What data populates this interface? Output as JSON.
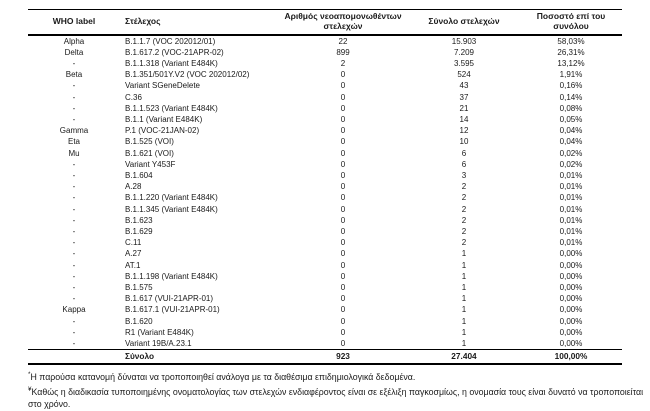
{
  "table": {
    "columns": [
      {
        "label": "WHO label"
      },
      {
        "label": "Στέλεχος"
      },
      {
        "label": "Αριθμός νεοαπομονωθέντων στελεχών"
      },
      {
        "label": "Σύνολο στελεχών"
      },
      {
        "label": "Ποσοστό επί του συνόλου"
      }
    ],
    "rows": [
      {
        "who": "Alpha",
        "strain": "B.1.1.7 (VOC 202012/01)",
        "new_isolates": "22",
        "total": "15.903",
        "pct": "58,03%"
      },
      {
        "who": "Delta",
        "strain": "B.1.617.2 (VOC-21APR-02)",
        "new_isolates": "899",
        "total": "7.209",
        "pct": "26,31%"
      },
      {
        "who": "-",
        "strain": "B.1.1.318 (Variant E484K)",
        "new_isolates": "2",
        "total": "3.595",
        "pct": "13,12%"
      },
      {
        "who": "Beta",
        "strain": "B.1.351/501Y.V2 (VOC 202012/02)",
        "new_isolates": "0",
        "total": "524",
        "pct": "1,91%"
      },
      {
        "who": "-",
        "strain": "Variant SGeneDelete",
        "new_isolates": "0",
        "total": "43",
        "pct": "0,16%"
      },
      {
        "who": "-",
        "strain": "C.36",
        "new_isolates": "0",
        "total": "37",
        "pct": "0,14%"
      },
      {
        "who": "-",
        "strain": "B.1.1.523 (Variant E484K)",
        "new_isolates": "0",
        "total": "21",
        "pct": "0,08%"
      },
      {
        "who": "-",
        "strain": "B.1.1 (Variant E484K)",
        "new_isolates": "0",
        "total": "14",
        "pct": "0,05%"
      },
      {
        "who": "Gamma",
        "strain": "P.1 (VOC-21JAN-02)",
        "new_isolates": "0",
        "total": "12",
        "pct": "0,04%"
      },
      {
        "who": "Eta",
        "strain": "B.1.525 (VOI)",
        "new_isolates": "0",
        "total": "10",
        "pct": "0,04%"
      },
      {
        "who": "Mu",
        "strain": "B.1.621 (VOI)",
        "new_isolates": "0",
        "total": "6",
        "pct": "0,02%"
      },
      {
        "who": "-",
        "strain": "Variant Y453F",
        "new_isolates": "0",
        "total": "6",
        "pct": "0,02%"
      },
      {
        "who": "-",
        "strain": "B.1.604",
        "new_isolates": "0",
        "total": "3",
        "pct": "0,01%"
      },
      {
        "who": "-",
        "strain": "A.28",
        "new_isolates": "0",
        "total": "2",
        "pct": "0,01%"
      },
      {
        "who": "-",
        "strain": "B.1.1.220 (Variant E484K)",
        "new_isolates": "0",
        "total": "2",
        "pct": "0,01%"
      },
      {
        "who": "-",
        "strain": "B.1.1.345 (Variant E484K)",
        "new_isolates": "0",
        "total": "2",
        "pct": "0,01%"
      },
      {
        "who": "-",
        "strain": "B.1.623",
        "new_isolates": "0",
        "total": "2",
        "pct": "0,01%"
      },
      {
        "who": "-",
        "strain": "B.1.629",
        "new_isolates": "0",
        "total": "2",
        "pct": "0,01%"
      },
      {
        "who": "-",
        "strain": "C.11",
        "new_isolates": "0",
        "total": "2",
        "pct": "0,01%"
      },
      {
        "who": "-",
        "strain": "A.27",
        "new_isolates": "0",
        "total": "1",
        "pct": "0,00%"
      },
      {
        "who": "-",
        "strain": "AT.1",
        "new_isolates": "0",
        "total": "1",
        "pct": "0,00%"
      },
      {
        "who": "-",
        "strain": "B.1.1.198 (Variant E484K)",
        "new_isolates": "0",
        "total": "1",
        "pct": "0,00%"
      },
      {
        "who": "-",
        "strain": "B.1.575",
        "new_isolates": "0",
        "total": "1",
        "pct": "0,00%"
      },
      {
        "who": "-",
        "strain": "B.1.617 (VUI-21APR-01)",
        "new_isolates": "0",
        "total": "1",
        "pct": "0,00%"
      },
      {
        "who": "Kappa",
        "strain": "B.1.617.1 (VUI-21APR-01)",
        "new_isolates": "0",
        "total": "1",
        "pct": "0,00%"
      },
      {
        "who": "-",
        "strain": "B.1.620",
        "new_isolates": "0",
        "total": "1",
        "pct": "0,00%"
      },
      {
        "who": "-",
        "strain": "R1 (Variant E484K)",
        "new_isolates": "0",
        "total": "1",
        "pct": "0,00%"
      },
      {
        "who": "-",
        "strain": "Variant 19B/A.23.1",
        "new_isolates": "0",
        "total": "1",
        "pct": "0,00%"
      }
    ],
    "total_row": {
      "label": "Σύνολο",
      "new_isolates": "923",
      "total": "27.404",
      "pct": "100,00%"
    }
  },
  "footnotes": [
    {
      "marker": "*",
      "text": "Η παρούσα κατανομή δύναται να τροποποιηθεί ανάλογα με τα διαθέσιμα επιδημιολογικά δεδομένα."
    },
    {
      "marker": "¥",
      "text": "Καθώς η διαδικασία τυποποιημένης ονοματολογίας των στελεχών ενδιαφέροντος είναι σε εξέλιξη παγκοσμίως, η ονομασία τους είναι δυνατό να τροποποιείται στο χρόνο."
    }
  ],
  "colors": {
    "text": "#1a1a1a",
    "border": "#000000",
    "background": "#ffffff"
  }
}
